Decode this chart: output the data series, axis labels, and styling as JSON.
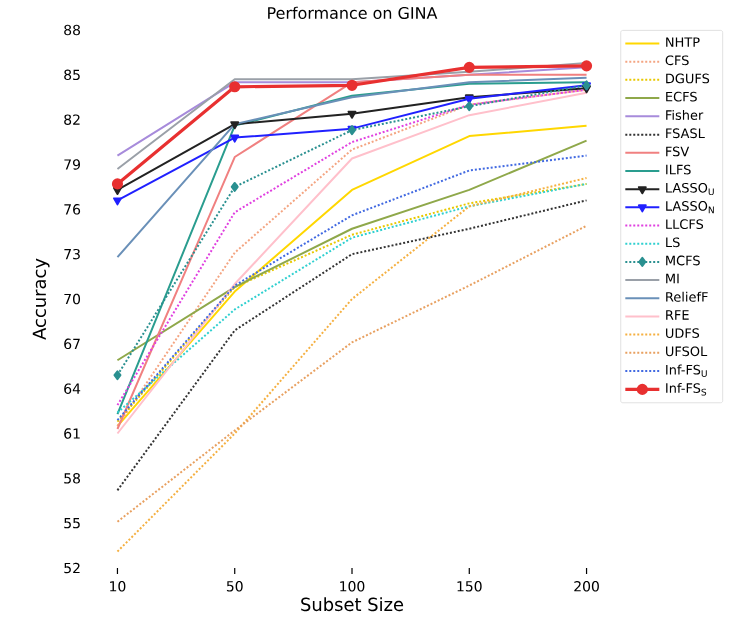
{
  "chart_data": {
    "type": "line",
    "title": "Performance on GINA",
    "xlabel": "Subset Size",
    "ylabel": "Accuracy",
    "categories": [
      "10",
      "50",
      "100",
      "150",
      "200"
    ],
    "ylim": [
      52,
      88
    ],
    "yticks": [
      52,
      55,
      58,
      61,
      64,
      67,
      70,
      73,
      76,
      79,
      82,
      85,
      88
    ],
    "grid": false,
    "legend": "right",
    "series": [
      {
        "name": "NHTP",
        "color": "#ffd700",
        "line_style": "solid",
        "values": [
          61.5,
          70.5,
          77.3,
          80.9,
          81.6
        ]
      },
      {
        "name": "CFS",
        "color": "#f4a582",
        "line_style": "dotted",
        "values": [
          61.5,
          73.1,
          80.0,
          83.0,
          84.0
        ]
      },
      {
        "name": "DGUFS",
        "color": "#e8c800",
        "line_style": "dotted",
        "values": [
          61.8,
          70.8,
          74.3,
          76.4,
          77.7
        ]
      },
      {
        "name": "ECFS",
        "color": "#8fa84a",
        "line_style": "solid",
        "values": [
          65.9,
          70.8,
          74.7,
          77.3,
          80.6
        ]
      },
      {
        "name": "Fisher",
        "color": "#a78bdb",
        "line_style": "solid",
        "values": [
          79.6,
          84.5,
          84.5,
          85.0,
          85.5
        ]
      },
      {
        "name": "FSASL",
        "color": "#333333",
        "line_style": "dotted",
        "values": [
          57.2,
          67.9,
          73.0,
          74.7,
          76.6
        ]
      },
      {
        "name": "FSV",
        "color": "#f08080",
        "line_style": "solid",
        "values": [
          61.3,
          79.5,
          84.5,
          85.0,
          85.0
        ]
      },
      {
        "name": "ILFS",
        "color": "#2a9d8f",
        "line_style": "solid",
        "values": [
          62.3,
          81.6,
          83.6,
          84.4,
          84.5
        ]
      },
      {
        "name": "LASSO$_{U}$",
        "color": "#222222",
        "line_style": "solid",
        "marker": "triangle",
        "values": [
          77.3,
          81.7,
          82.4,
          83.5,
          84.1
        ]
      },
      {
        "name": "LASSO$_{N}$",
        "color": "#2020ff",
        "line_style": "solid",
        "marker": "triangle",
        "values": [
          76.6,
          80.8,
          81.4,
          83.4,
          84.3
        ]
      },
      {
        "name": "LLCFS",
        "color": "#e040e0",
        "line_style": "dotted",
        "values": [
          62.9,
          75.8,
          80.5,
          83.0,
          84.0
        ]
      },
      {
        "name": "LS",
        "color": "#30d0d0",
        "line_style": "dotted",
        "values": [
          62.4,
          69.3,
          74.1,
          76.2,
          77.7
        ]
      },
      {
        "name": "MCFS",
        "color": "#2a9090",
        "line_style": "dotted",
        "marker": "diamond",
        "values": [
          64.9,
          77.5,
          81.3,
          82.9,
          84.3
        ]
      },
      {
        "name": "MI",
        "color": "#9aa0a8",
        "line_style": "solid",
        "values": [
          78.7,
          84.7,
          84.7,
          85.2,
          85.8
        ]
      },
      {
        "name": "ReliefF",
        "color": "#6a90b8",
        "line_style": "solid",
        "values": [
          72.8,
          81.7,
          83.5,
          84.5,
          84.8
        ]
      },
      {
        "name": "RFE",
        "color": "#ffc0cb",
        "line_style": "solid",
        "values": [
          61.0,
          71.0,
          79.4,
          82.3,
          83.8
        ]
      },
      {
        "name": "UDFS",
        "color": "#f5b041",
        "line_style": "dotted",
        "values": [
          53.1,
          61.0,
          70.0,
          76.2,
          78.1
        ]
      },
      {
        "name": "UFSOL",
        "color": "#e8a060",
        "line_style": "dotted",
        "values": [
          55.1,
          61.2,
          67.1,
          70.9,
          74.9
        ]
      },
      {
        "name": "Inf-FS$_{U}$",
        "color": "#4169e1",
        "line_style": "dotted",
        "values": [
          61.9,
          70.9,
          75.6,
          78.6,
          79.6
        ]
      },
      {
        "name": "Inf-FS$_{S}$",
        "color": "#e83030",
        "line_style": "solid",
        "marker": "circle",
        "values": [
          77.7,
          84.2,
          84.3,
          85.5,
          85.6
        ]
      }
    ]
  }
}
